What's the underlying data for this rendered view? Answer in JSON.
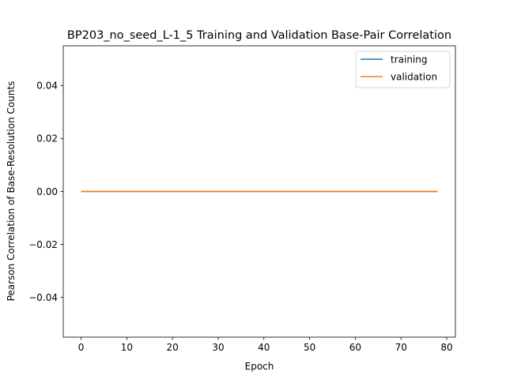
{
  "chart_data": {
    "type": "line",
    "title": "BP203_no_seed_L-1_5  Training and Validation Base-Pair Correlation",
    "xlabel": "Epoch",
    "ylabel": "Pearson Correlation of Base-Resolution Counts",
    "xlim": [
      -3.9,
      81.9
    ],
    "ylim": [
      -0.055,
      0.055
    ],
    "xticks": [
      0,
      10,
      20,
      30,
      40,
      50,
      60,
      70,
      80
    ],
    "yticks": [
      -0.04,
      -0.02,
      0.0,
      0.02,
      0.04
    ],
    "ytick_labels": [
      "−0.04",
      "−0.02",
      "0.00",
      "0.02",
      "0.04"
    ],
    "grid": false,
    "legend_position": "upper right",
    "series": [
      {
        "name": "training",
        "color": "#1f77b4",
        "x_start": 0,
        "x_end": 78,
        "y_constant": 0.0
      },
      {
        "name": "validation",
        "color": "#ff7f0e",
        "x_start": 0,
        "x_end": 78,
        "y_constant": 0.0
      }
    ]
  }
}
